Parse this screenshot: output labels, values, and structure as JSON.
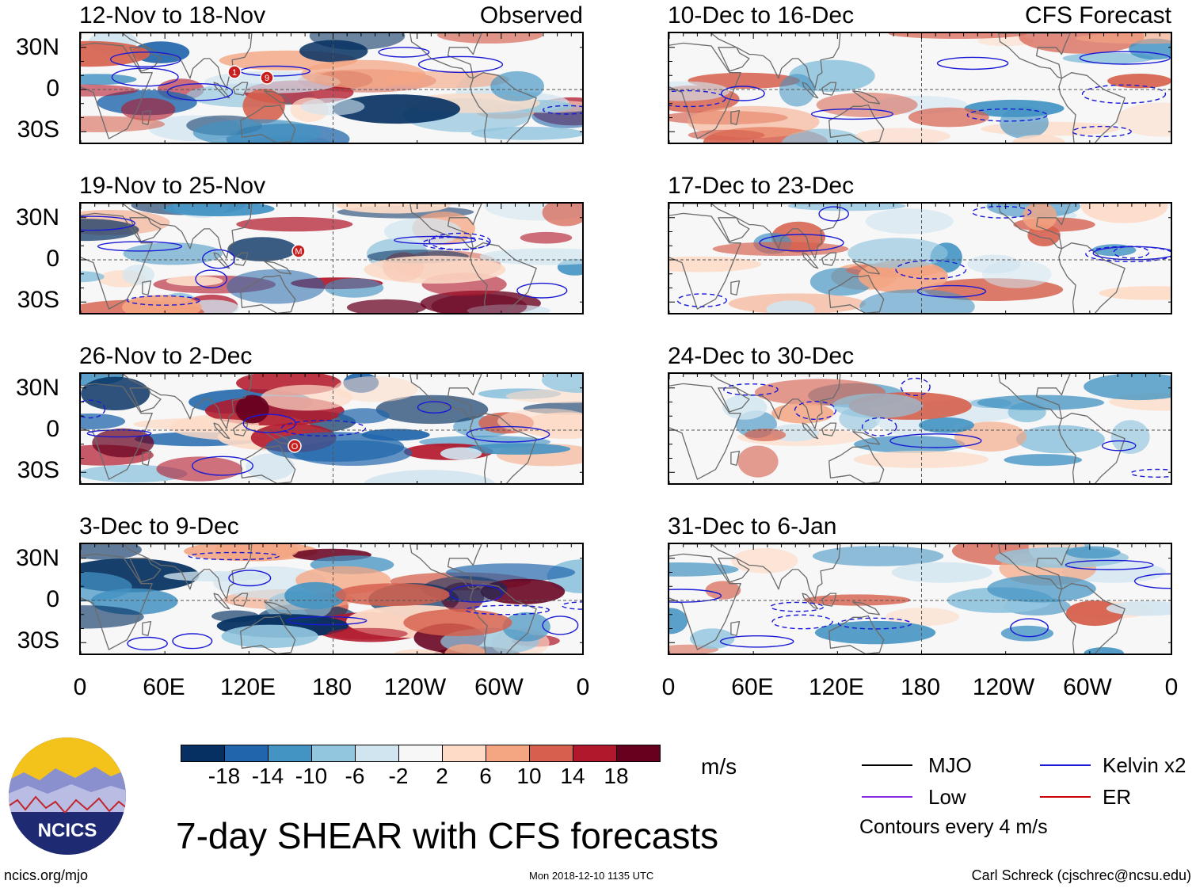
{
  "header": {
    "observed": "Observed",
    "forecast": "CFS Forecast"
  },
  "panels": {
    "observed": [
      {
        "label": "12-Nov to 18-Nov"
      },
      {
        "label": "19-Nov to 25-Nov"
      },
      {
        "label": "26-Nov to 2-Dec"
      },
      {
        "label": "3-Dec to 9-Dec"
      }
    ],
    "forecast": [
      {
        "label": "10-Dec to 16-Dec"
      },
      {
        "label": "17-Dec to 23-Dec"
      },
      {
        "label": "24-Dec to 30-Dec"
      },
      {
        "label": "31-Dec to 6-Jan"
      }
    ]
  },
  "axes": {
    "lat_labels": [
      "30N",
      "0",
      "30S"
    ],
    "lon_labels": [
      "0",
      "60E",
      "120E",
      "180",
      "120W",
      "60W",
      "0"
    ]
  },
  "colorbar": {
    "colors": [
      "#053061",
      "#2166ac",
      "#4393c3",
      "#92c5de",
      "#d1e5f0",
      "#f7f7f7",
      "#fddbc7",
      "#f4a582",
      "#d6604d",
      "#b2182b",
      "#67001f"
    ],
    "labels": [
      "-18",
      "-14",
      "-10",
      "-6",
      "-2",
      "2",
      "6",
      "10",
      "14",
      "18"
    ],
    "units": "m/s"
  },
  "legend": {
    "mjo": {
      "label": "MJO",
      "color": "#000000"
    },
    "kelvin": {
      "label": "Kelvin x2",
      "color": "#1a1ad6"
    },
    "low": {
      "label": "Low",
      "color": "#8a2be2"
    },
    "er": {
      "label": "ER",
      "color": "#cc0000"
    },
    "contours_note": "Contours every 4 m/s"
  },
  "title": "7-day SHEAR with CFS forecasts",
  "logo": {
    "text": "NCICS"
  },
  "footer": {
    "left": "ncics.org/mjo",
    "center": "Mon 2018-12-10 1135 UTC",
    "right": "Carl Schreck (cjschrec@ncsu.edu)"
  },
  "storm_markers": [
    {
      "panel": "observed-1",
      "symbols": [
        "1",
        "9"
      ]
    },
    {
      "panel": "observed-2",
      "symbols": [
        "M"
      ]
    },
    {
      "panel": "observed-3",
      "symbols": [
        "O"
      ]
    }
  ]
}
